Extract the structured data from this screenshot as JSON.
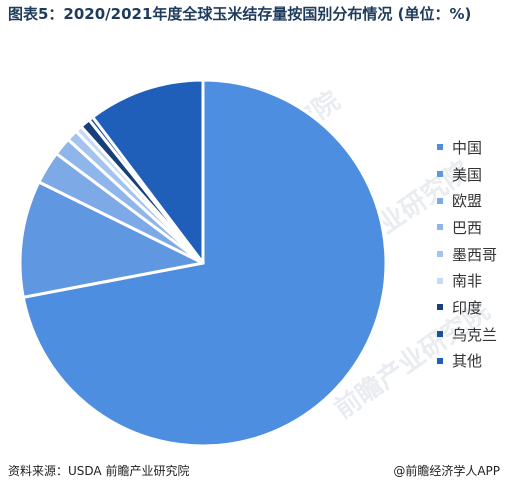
{
  "title": "图表5：2020/2021年度全球玉米结存量按国别分布情况 (单位：%)",
  "chart_data": {
    "type": "pie",
    "title": "图表5：2020/2021年度全球玉米结存量按国别分布情况 (单位：%)",
    "slices": [
      {
        "label": "中国",
        "value": 72.0,
        "color": "#4d8ee0"
      },
      {
        "label": "美国",
        "value": 10.3,
        "color": "#5f97e0"
      },
      {
        "label": "欧盟",
        "value": 2.9,
        "color": "#7da9e6"
      },
      {
        "label": "巴西",
        "value": 1.6,
        "color": "#8fb6eb"
      },
      {
        "label": "墨西哥",
        "value": 1.0,
        "color": "#a4c4ef"
      },
      {
        "label": "南非",
        "value": 0.6,
        "color": "#c5daf5"
      },
      {
        "label": "印度",
        "value": 0.9,
        "color": "#173f7a"
      },
      {
        "label": "乌克兰",
        "value": 0.4,
        "color": "#1d4f9a"
      },
      {
        "label": "其他",
        "value": 10.3,
        "color": "#1f5fba"
      }
    ],
    "legend_position": "right"
  },
  "watermark": "前瞻产业研究院",
  "footer": {
    "source": "资料来源：USDA 前瞻产业研究院",
    "brand": "@前瞻经济学人APP"
  }
}
